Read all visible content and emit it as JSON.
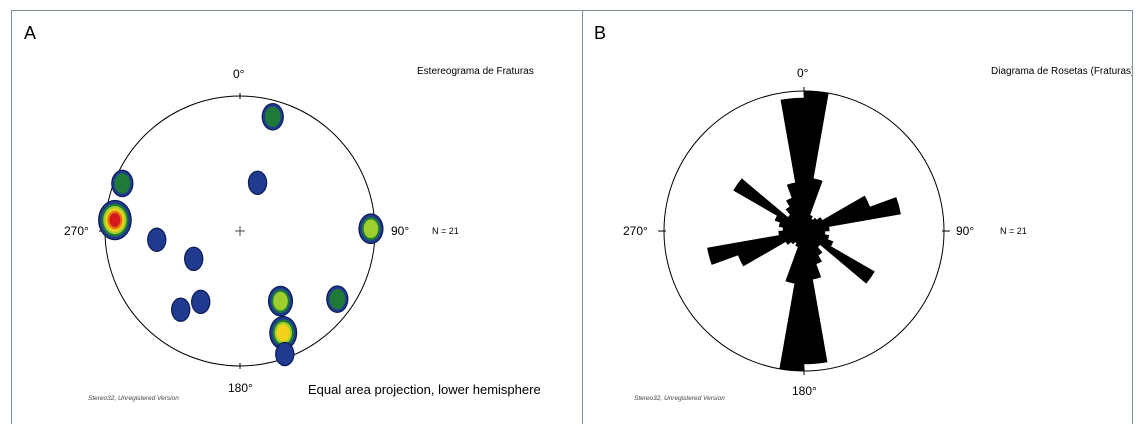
{
  "panels": {
    "a": {
      "letter": "A",
      "title": "Estereograma de Fraturas",
      "labels": {
        "north": "0°",
        "east": "90°",
        "south": "180°",
        "west": "270°"
      },
      "n_label": "N = 21",
      "projection_note": "Equal area projection, lower hemisphere",
      "software_note": "Stereo32, Unregistered Version"
    },
    "b": {
      "letter": "B",
      "title": "Diagrama de Rosetas (Fraturas)",
      "labels": {
        "north": "0°",
        "east": "90°",
        "south": "180°",
        "west": "270°"
      },
      "n_label": "N = 21",
      "software_note": "Stereo32, Unregistered Version"
    }
  },
  "contour_colors": [
    "#1f3a8f",
    "#1f7a3a",
    "#9fcf2f",
    "#f2d21a",
    "#e07a10",
    "#d7191c"
  ],
  "stereo_clusters": [
    {
      "azimuth": 16,
      "radius": 0.88,
      "level": 2
    },
    {
      "azimuth": 20,
      "radius": 0.38,
      "level": 1
    },
    {
      "azimuth": 89,
      "radius": 0.97,
      "level": 3
    },
    {
      "azimuth": 125,
      "radius": 0.88,
      "level": 2
    },
    {
      "azimuth": 150,
      "radius": 0.6,
      "level": 3
    },
    {
      "azimuth": 157,
      "radius": 0.82,
      "level": 4
    },
    {
      "azimuth": 160,
      "radius": 0.97,
      "level": 1
    },
    {
      "azimuth": 209,
      "radius": 0.6,
      "level": 1
    },
    {
      "azimuth": 217,
      "radius": 0.73,
      "level": 1
    },
    {
      "azimuth": 239,
      "radius": 0.4,
      "level": 1
    },
    {
      "azimuth": 264,
      "radius": 0.62,
      "level": 1
    },
    {
      "azimuth": 275,
      "radius": 0.93,
      "level": 6
    },
    {
      "azimuth": 292,
      "radius": 0.94,
      "level": 2
    }
  ],
  "rose_petals": [
    {
      "azimuth": 5,
      "length": 1.0
    },
    {
      "azimuth": 15,
      "length": 0.38
    },
    {
      "azimuth": 25,
      "length": 0.12
    },
    {
      "azimuth": 35,
      "length": 0.1
    },
    {
      "azimuth": 45,
      "length": 0.12
    },
    {
      "azimuth": 55,
      "length": 0.15
    },
    {
      "azimuth": 65,
      "length": 0.5
    },
    {
      "azimuth": 75,
      "length": 0.7
    },
    {
      "azimuth": 85,
      "length": 0.18
    },
    {
      "azimuth": 95,
      "length": 0.15
    },
    {
      "azimuth": 105,
      "length": 0.18
    },
    {
      "azimuth": 115,
      "length": 0.22
    },
    {
      "azimuth": 125,
      "length": 0.58
    },
    {
      "azimuth": 135,
      "length": 0.15
    },
    {
      "azimuth": 145,
      "length": 0.2
    },
    {
      "azimuth": 155,
      "length": 0.25
    },
    {
      "azimuth": 165,
      "length": 0.35
    },
    {
      "azimuth": 175,
      "length": 0.95
    }
  ]
}
